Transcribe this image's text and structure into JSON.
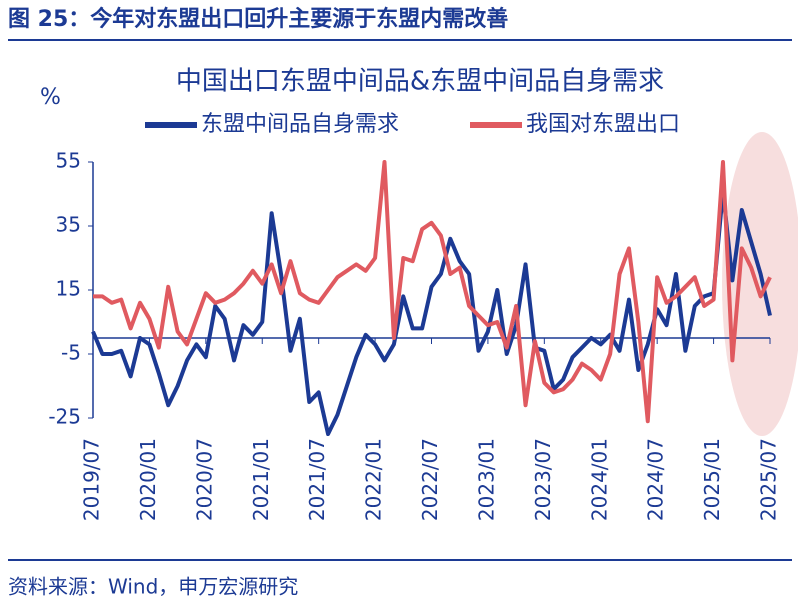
{
  "header": {
    "title": "图 25：今年对东盟出口回升主要源于东盟内需改善"
  },
  "chart_data": {
    "type": "line",
    "title": "中国出口东盟中间品&东盟中间品自身需求",
    "y_label": "%",
    "categories": [
      "2019/07",
      null,
      null,
      null,
      null,
      null,
      "2020/01",
      null,
      null,
      null,
      null,
      null,
      "2020/07",
      null,
      null,
      null,
      null,
      null,
      "2021/01",
      null,
      null,
      null,
      null,
      null,
      "2021/07",
      null,
      null,
      null,
      null,
      null,
      "2022/01",
      null,
      null,
      null,
      null,
      null,
      "2022/07",
      null,
      null,
      null,
      null,
      null,
      "2023/01",
      null,
      null,
      null,
      null,
      null,
      "2023/07",
      null,
      null,
      null,
      null,
      null,
      "2024/01",
      null,
      null,
      null,
      null,
      null,
      "2024/07",
      null,
      null,
      null,
      null,
      null,
      "2025/01",
      null,
      null,
      null,
      null,
      null,
      "2025/07"
    ],
    "series": [
      {
        "name": "东盟中间品自身需求",
        "color": "#1c3a94",
        "values": [
          2,
          -5,
          -5,
          -4,
          -12,
          0,
          -2,
          -11,
          -21,
          -15,
          -7,
          -2,
          -6,
          10,
          6,
          -7,
          4,
          1,
          5,
          39,
          20,
          -4,
          6,
          -20,
          -17,
          -30,
          -24,
          -15,
          -6,
          1,
          -2,
          -7,
          -2,
          13,
          3,
          3,
          16,
          20,
          31,
          24,
          20,
          -4,
          2,
          15,
          -5,
          4,
          23,
          -3,
          -4,
          -16,
          -13,
          -6,
          -3,
          0,
          -2,
          1,
          -4,
          12,
          -10,
          -2,
          9,
          4,
          20,
          -4,
          10,
          13,
          14,
          46,
          18,
          40,
          30,
          20,
          7
        ]
      },
      {
        "name": "我国对东盟出口",
        "color": "#e05a60",
        "values": [
          13,
          13,
          11,
          12,
          3,
          11,
          6,
          -3,
          16,
          2,
          -2,
          6,
          14,
          11,
          12,
          14,
          17,
          21,
          17,
          23,
          14,
          24,
          14,
          12,
          11,
          15,
          19,
          21,
          23,
          21,
          25,
          55,
          0,
          25,
          24,
          34,
          36,
          32,
          20,
          22,
          10,
          7,
          4,
          5,
          -3,
          10,
          -21,
          -1,
          -14,
          -17,
          -16,
          -13,
          -8,
          -10,
          -13,
          -5,
          20,
          28,
          5,
          -26,
          19,
          11,
          13,
          16,
          19,
          10,
          12,
          55,
          -7,
          28,
          22,
          13,
          19
        ]
      }
    ],
    "ylim": [
      -25,
      55
    ],
    "yticks": [
      55,
      35,
      15,
      -5,
      -25
    ],
    "source": "资料来源：Wind，申万宏源研究"
  }
}
